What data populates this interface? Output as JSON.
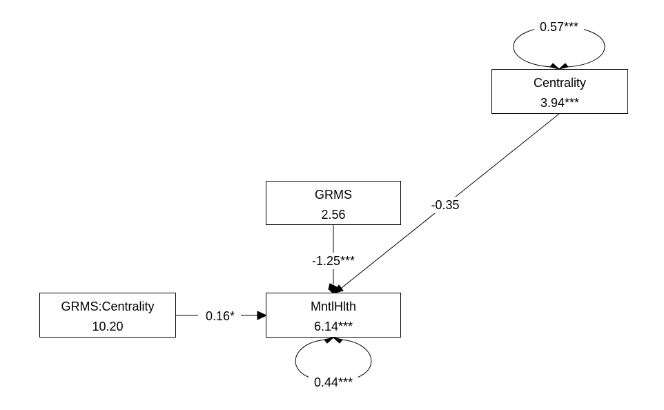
{
  "nodes": {
    "centrality": {
      "name": "Centrality",
      "value": "3.94***"
    },
    "grms": {
      "name": "GRMS",
      "value": "2.56"
    },
    "grms_centrality": {
      "name": "GRMS:Centrality",
      "value": "10.20"
    },
    "mntlhlth": {
      "name": "MntlHlth",
      "value": "6.14***"
    }
  },
  "edges": {
    "centrality_to_mntlhlth": "-0.35",
    "grms_to_mntlhlth": "-1.25***",
    "grms_centrality_to_mntlhlth": "0.16*"
  },
  "variances": {
    "centrality": "0.57***",
    "mntlhlth": "0.44***"
  }
}
